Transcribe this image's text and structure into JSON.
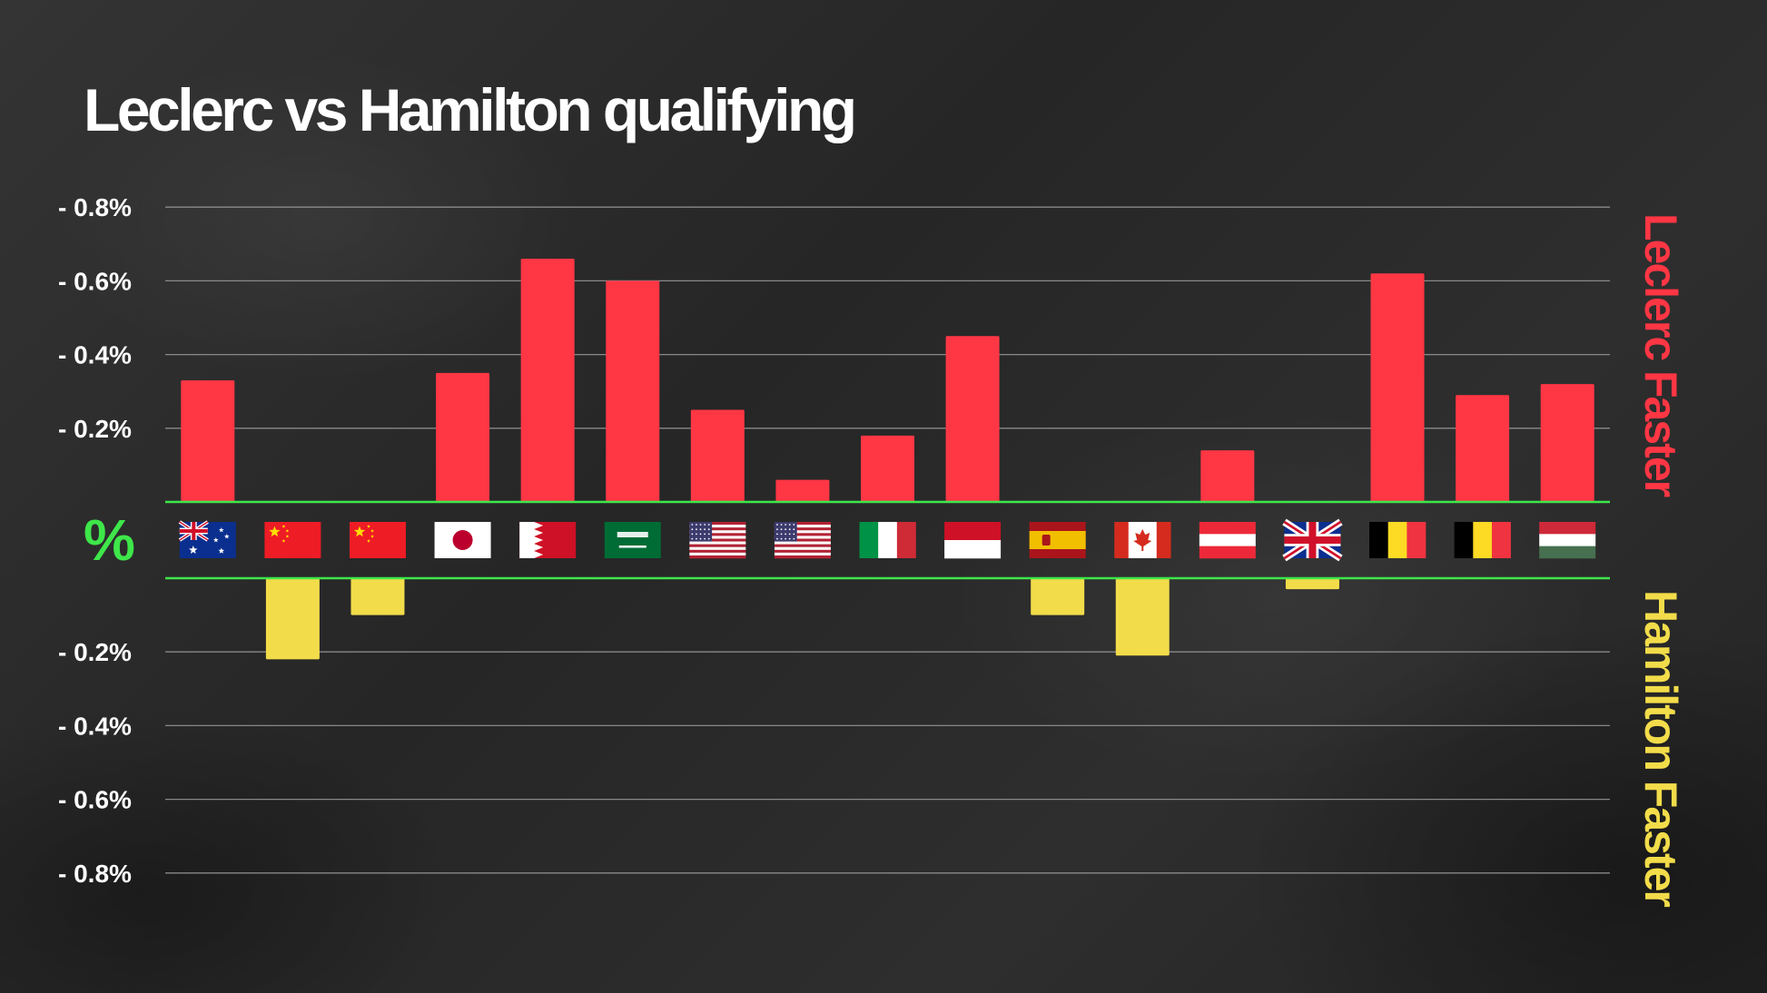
{
  "chart_data": {
    "type": "bar",
    "title": "Leclerc vs Hamilton qualifying",
    "ylabel": "%",
    "upper_label": "Leclerc Faster",
    "lower_label": "Hamilton Faster",
    "upper_tick_labels": [
      "- 0.8%",
      "- 0.6%",
      "- 0.4%",
      "- 0.2%"
    ],
    "lower_tick_labels": [
      "- 0.2%",
      "- 0.4%",
      "- 0.6%",
      "- 0.8%"
    ],
    "ylim": [
      -0.8,
      0.8
    ],
    "grid": true,
    "categories": [
      "Australia",
      "China",
      "China",
      "Japan",
      "Bahrain",
      "Saudi Arabia",
      "United States",
      "United States",
      "Italy",
      "Monaco",
      "Spain",
      "Canada",
      "Austria",
      "Great Britain",
      "Belgium",
      "Belgium",
      "Hungary"
    ],
    "series": [
      {
        "values": [
          0.33,
          -0.22,
          -0.1,
          0.35,
          0.66,
          0.6,
          0.25,
          0.06,
          0.18,
          0.45,
          -0.1,
          -0.21,
          0.14,
          -0.03,
          0.62,
          0.29,
          0.32
        ]
      }
    ],
    "colors": {
      "positive": "#ff3644",
      "negative": "#f2dc4a",
      "zero_band": "#3ee64a",
      "grid": "#9a9a9a",
      "upper_label": "#ff3644",
      "lower_label": "#f2dc4a",
      "title": "#ffffff"
    },
    "flags": [
      "au",
      "cn",
      "cn",
      "jp",
      "bh",
      "sa",
      "us",
      "us",
      "it",
      "mc",
      "es",
      "ca",
      "at",
      "gb",
      "be",
      "be",
      "hu"
    ]
  }
}
